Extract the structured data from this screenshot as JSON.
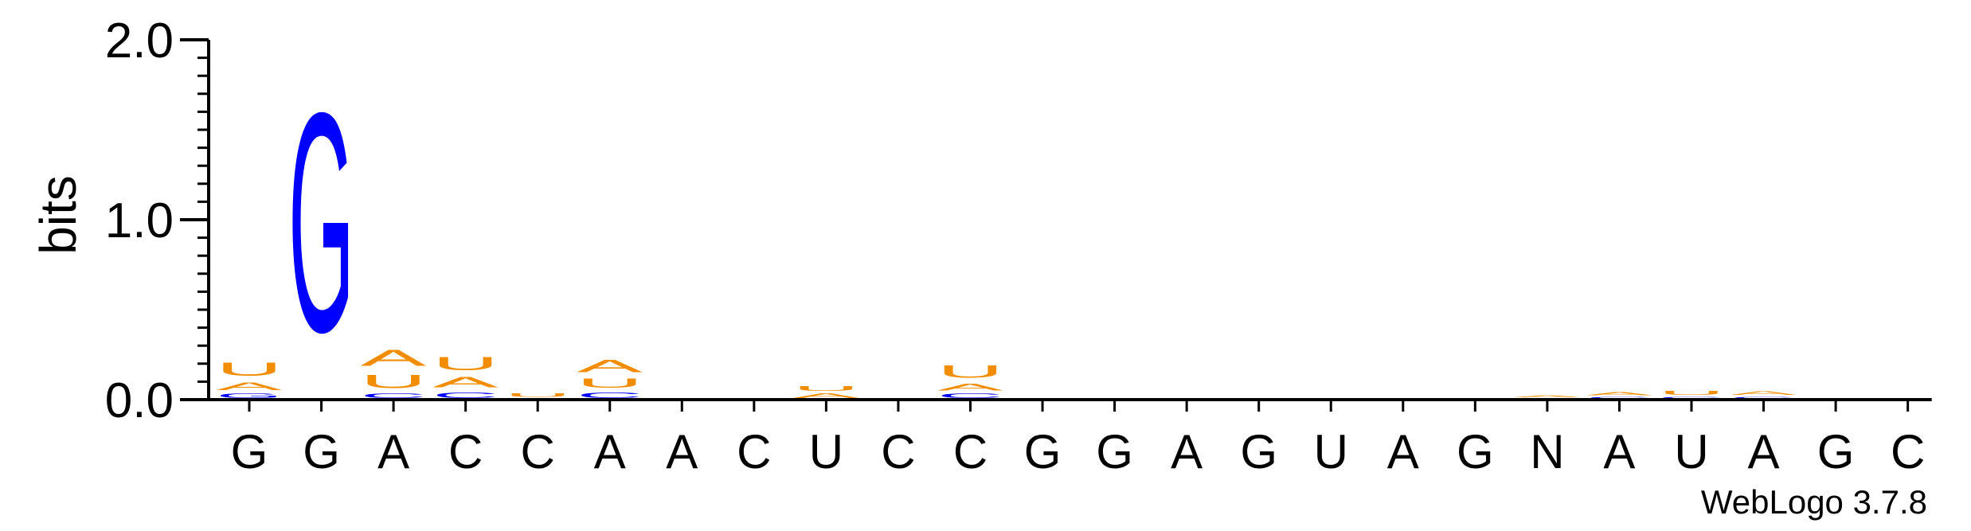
{
  "chart_data": {
    "type": "sequence_logo",
    "ylabel": "bits",
    "ylim": [
      0,
      2.0
    ],
    "yticks": [
      {
        "value": 0.0,
        "label": "0.0"
      },
      {
        "value": 1.0,
        "label": "1.0"
      },
      {
        "value": 2.0,
        "label": "2.0"
      }
    ],
    "x_tick_labels": [
      "G",
      "G",
      "A",
      "C",
      "C",
      "A",
      "A",
      "C",
      "U",
      "C",
      "C",
      "G",
      "G",
      "A",
      "G",
      "U",
      "A",
      "G",
      "N",
      "A",
      "U",
      "A",
      "G",
      "C"
    ],
    "colors": {
      "A": "#f28c00",
      "U": "#f28c00",
      "G": "#0000ff",
      "C": "#0000ff"
    },
    "columns": [
      [
        {
          "letter": "G",
          "bits": 0.04
        },
        {
          "letter": "A",
          "bits": 0.07
        },
        {
          "letter": "U",
          "bits": 0.12
        }
      ],
      [
        {
          "letter": "G",
          "bits": 1.95
        }
      ],
      [
        {
          "letter": "C",
          "bits": 0.04
        },
        {
          "letter": "U",
          "bits": 0.12
        },
        {
          "letter": "A",
          "bits": 0.14
        }
      ],
      [
        {
          "letter": "C",
          "bits": 0.05
        },
        {
          "letter": "A",
          "bits": 0.09
        },
        {
          "letter": "U",
          "bits": 0.12
        }
      ],
      [
        {
          "letter": "C",
          "bits": 0.01
        },
        {
          "letter": "U",
          "bits": 0.03
        }
      ],
      [
        {
          "letter": "C",
          "bits": 0.05
        },
        {
          "letter": "U",
          "bits": 0.08
        },
        {
          "letter": "A",
          "bits": 0.11
        }
      ],
      [
        {
          "letter": "A",
          "bits": 0.01
        }
      ],
      [
        {
          "letter": "A",
          "bits": 0.008
        }
      ],
      [
        {
          "letter": "A",
          "bits": 0.04
        },
        {
          "letter": "U",
          "bits": 0.04
        }
      ],
      [],
      [
        {
          "letter": "C",
          "bits": 0.04
        },
        {
          "letter": "A",
          "bits": 0.06
        },
        {
          "letter": "U",
          "bits": 0.11
        }
      ],
      [],
      [],
      [
        {
          "letter": "A",
          "bits": 0.01
        }
      ],
      [],
      [
        {
          "letter": "A",
          "bits": 0.01
        }
      ],
      [
        {
          "letter": "A",
          "bits": 0.008
        }
      ],
      [],
      [
        {
          "letter": "C",
          "bits": 0.01
        },
        {
          "letter": "A",
          "bits": 0.02
        }
      ],
      [
        {
          "letter": "C",
          "bits": 0.02
        },
        {
          "letter": "A",
          "bits": 0.025
        }
      ],
      [
        {
          "letter": "C",
          "bits": 0.02
        },
        {
          "letter": "U",
          "bits": 0.035
        }
      ],
      [
        {
          "letter": "C",
          "bits": 0.02
        },
        {
          "letter": "A",
          "bits": 0.03
        }
      ],
      [],
      []
    ]
  },
  "credit": "WebLogo 3.7.8"
}
